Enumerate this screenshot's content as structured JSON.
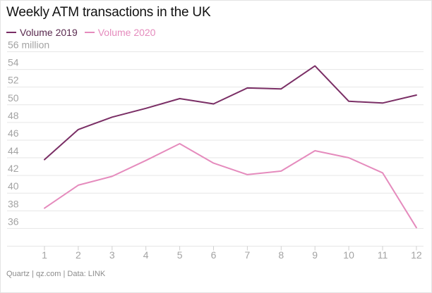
{
  "chart_data": {
    "type": "line",
    "title": "Weekly ATM transactions in the UK",
    "x": [
      1,
      2,
      3,
      4,
      5,
      6,
      7,
      8,
      9,
      10,
      11,
      12
    ],
    "series": [
      {
        "name": "Volume 2019",
        "color": "#7a2e65",
        "values": [
          43.8,
          47.2,
          48.6,
          49.6,
          50.7,
          50.1,
          51.9,
          51.8,
          54.4,
          50.4,
          50.2,
          51.1
        ]
      },
      {
        "name": "Volume 2020",
        "color": "#e58bbd",
        "values": [
          38.3,
          40.9,
          41.9,
          43.7,
          45.6,
          43.4,
          42.1,
          42.5,
          44.8,
          44.0,
          42.3,
          36.1
        ]
      }
    ],
    "ylim": [
      34,
      56
    ],
    "yticks": [
      "56 million",
      "54",
      "52",
      "50",
      "48",
      "46",
      "44",
      "42",
      "40",
      "38",
      "36"
    ],
    "ytick_values": [
      56,
      54,
      52,
      50,
      48,
      46,
      44,
      42,
      40,
      38,
      36
    ],
    "xticks": [
      "1",
      "2",
      "3",
      "4",
      "5",
      "6",
      "7",
      "8",
      "9",
      "10",
      "11",
      "12"
    ],
    "grid": true,
    "legend_position": "top-left",
    "source": "Quartz | qz.com | Data: LINK"
  }
}
